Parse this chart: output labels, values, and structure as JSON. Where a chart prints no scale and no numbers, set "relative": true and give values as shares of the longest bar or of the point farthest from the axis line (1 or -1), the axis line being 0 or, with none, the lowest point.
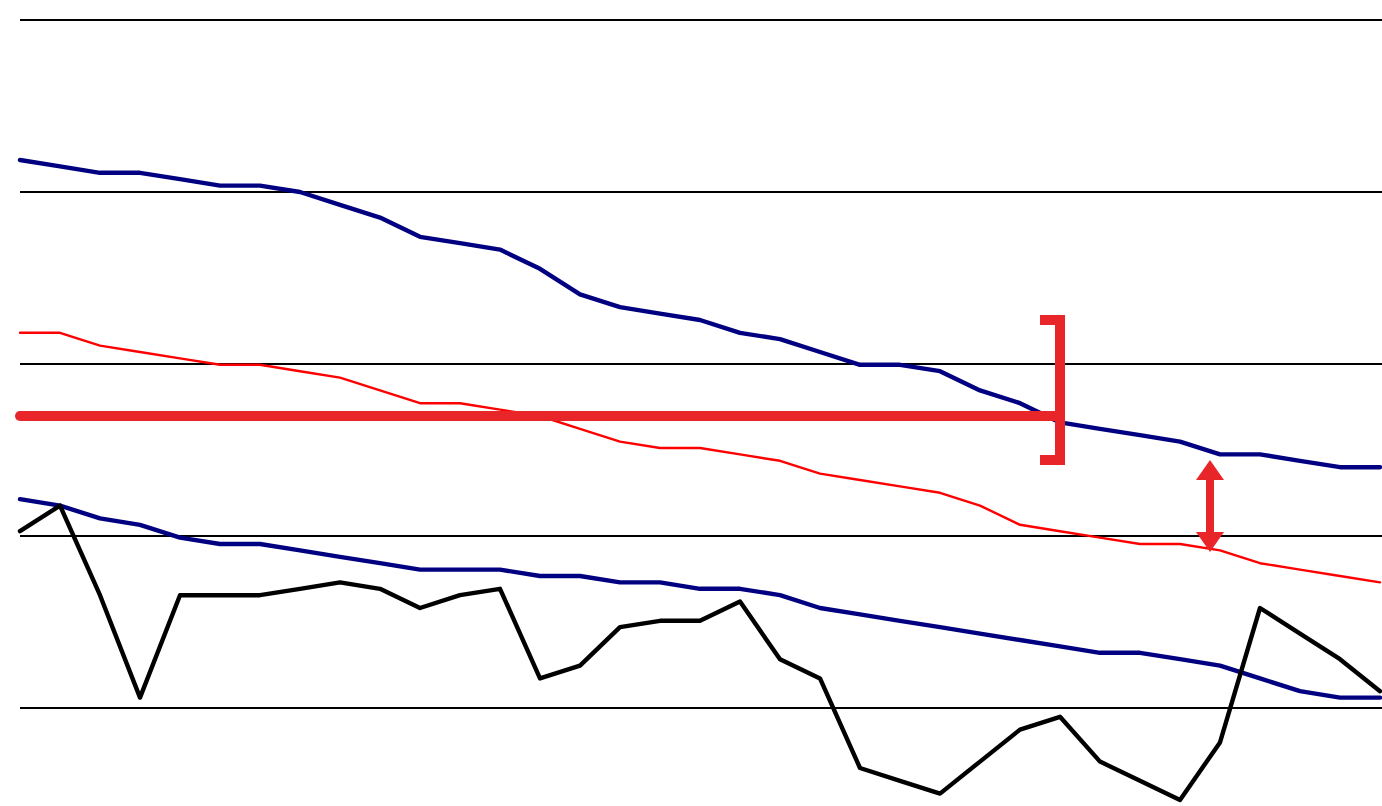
{
  "chart_data": {
    "type": "line",
    "relative": true,
    "grid": "y",
    "line_style": "solid",
    "categories": [
      null,
      null,
      null,
      null,
      null,
      null,
      null,
      null,
      null,
      null,
      null,
      null,
      null,
      null,
      null,
      null,
      null,
      null,
      null,
      null,
      null,
      null,
      null,
      null,
      null,
      null,
      null,
      null,
      null,
      null,
      null,
      null,
      null,
      null,
      null
    ],
    "series": [
      {
        "color": "#000080",
        "values": [
          1.0,
          0.99,
          0.98,
          0.98,
          0.97,
          0.96,
          0.96,
          0.95,
          0.93,
          0.91,
          0.88,
          0.87,
          0.86,
          0.83,
          0.79,
          0.77,
          0.76,
          0.75,
          0.73,
          0.72,
          0.7,
          0.68,
          0.68,
          0.67,
          0.64,
          0.62,
          0.59,
          0.58,
          0.57,
          0.56,
          0.54,
          0.54,
          0.53,
          0.52,
          0.52
        ]
      },
      {
        "color": "#ff0000",
        "values": [
          0.73,
          0.73,
          0.71,
          0.7,
          0.69,
          0.68,
          0.68,
          0.67,
          0.66,
          0.64,
          0.62,
          0.62,
          0.61,
          0.6,
          0.58,
          0.56,
          0.55,
          0.55,
          0.54,
          0.53,
          0.51,
          0.5,
          0.49,
          0.48,
          0.46,
          0.43,
          0.42,
          0.41,
          0.4,
          0.4,
          0.39,
          0.37,
          0.36,
          0.35,
          0.34
        ]
      },
      {
        "color": "#000080",
        "values": [
          0.47,
          0.46,
          0.44,
          0.43,
          0.41,
          0.4,
          0.4,
          0.39,
          0.38,
          0.37,
          0.36,
          0.36,
          0.36,
          0.35,
          0.35,
          0.34,
          0.34,
          0.33,
          0.33,
          0.32,
          0.3,
          0.29,
          0.28,
          0.27,
          0.26,
          0.25,
          0.24,
          0.23,
          0.23,
          0.22,
          0.21,
          0.19,
          0.17,
          0.16,
          0.16
        ]
      },
      {
        "color": "#000000",
        "values": [
          0.42,
          0.46,
          0.32,
          0.16,
          0.32,
          0.32,
          0.32,
          0.33,
          0.34,
          0.33,
          0.3,
          0.32,
          0.33,
          0.19,
          0.21,
          0.27,
          0.28,
          0.28,
          0.31,
          0.22,
          0.19,
          0.05,
          0.03,
          0.01,
          0.06,
          0.11,
          0.13,
          0.06,
          0.03,
          0,
          0.09,
          0.3,
          0.26,
          0.22,
          0.17
        ]
      },
      {
        "color": "#e8262a",
        "values": [
          0.6,
          0.6,
          0.6,
          0.6,
          0.6,
          0.6,
          0.6,
          0.6,
          0.6,
          0.6,
          0.6,
          0.6,
          0.6,
          0.6,
          0.6,
          0.6,
          0.6,
          0.6,
          0.6,
          0.6,
          0.6,
          0.6,
          0.6,
          0.6,
          0.6,
          0.6,
          0.6,
          null,
          null,
          null,
          null,
          null,
          null,
          null,
          null
        ]
      }
    ]
  }
}
